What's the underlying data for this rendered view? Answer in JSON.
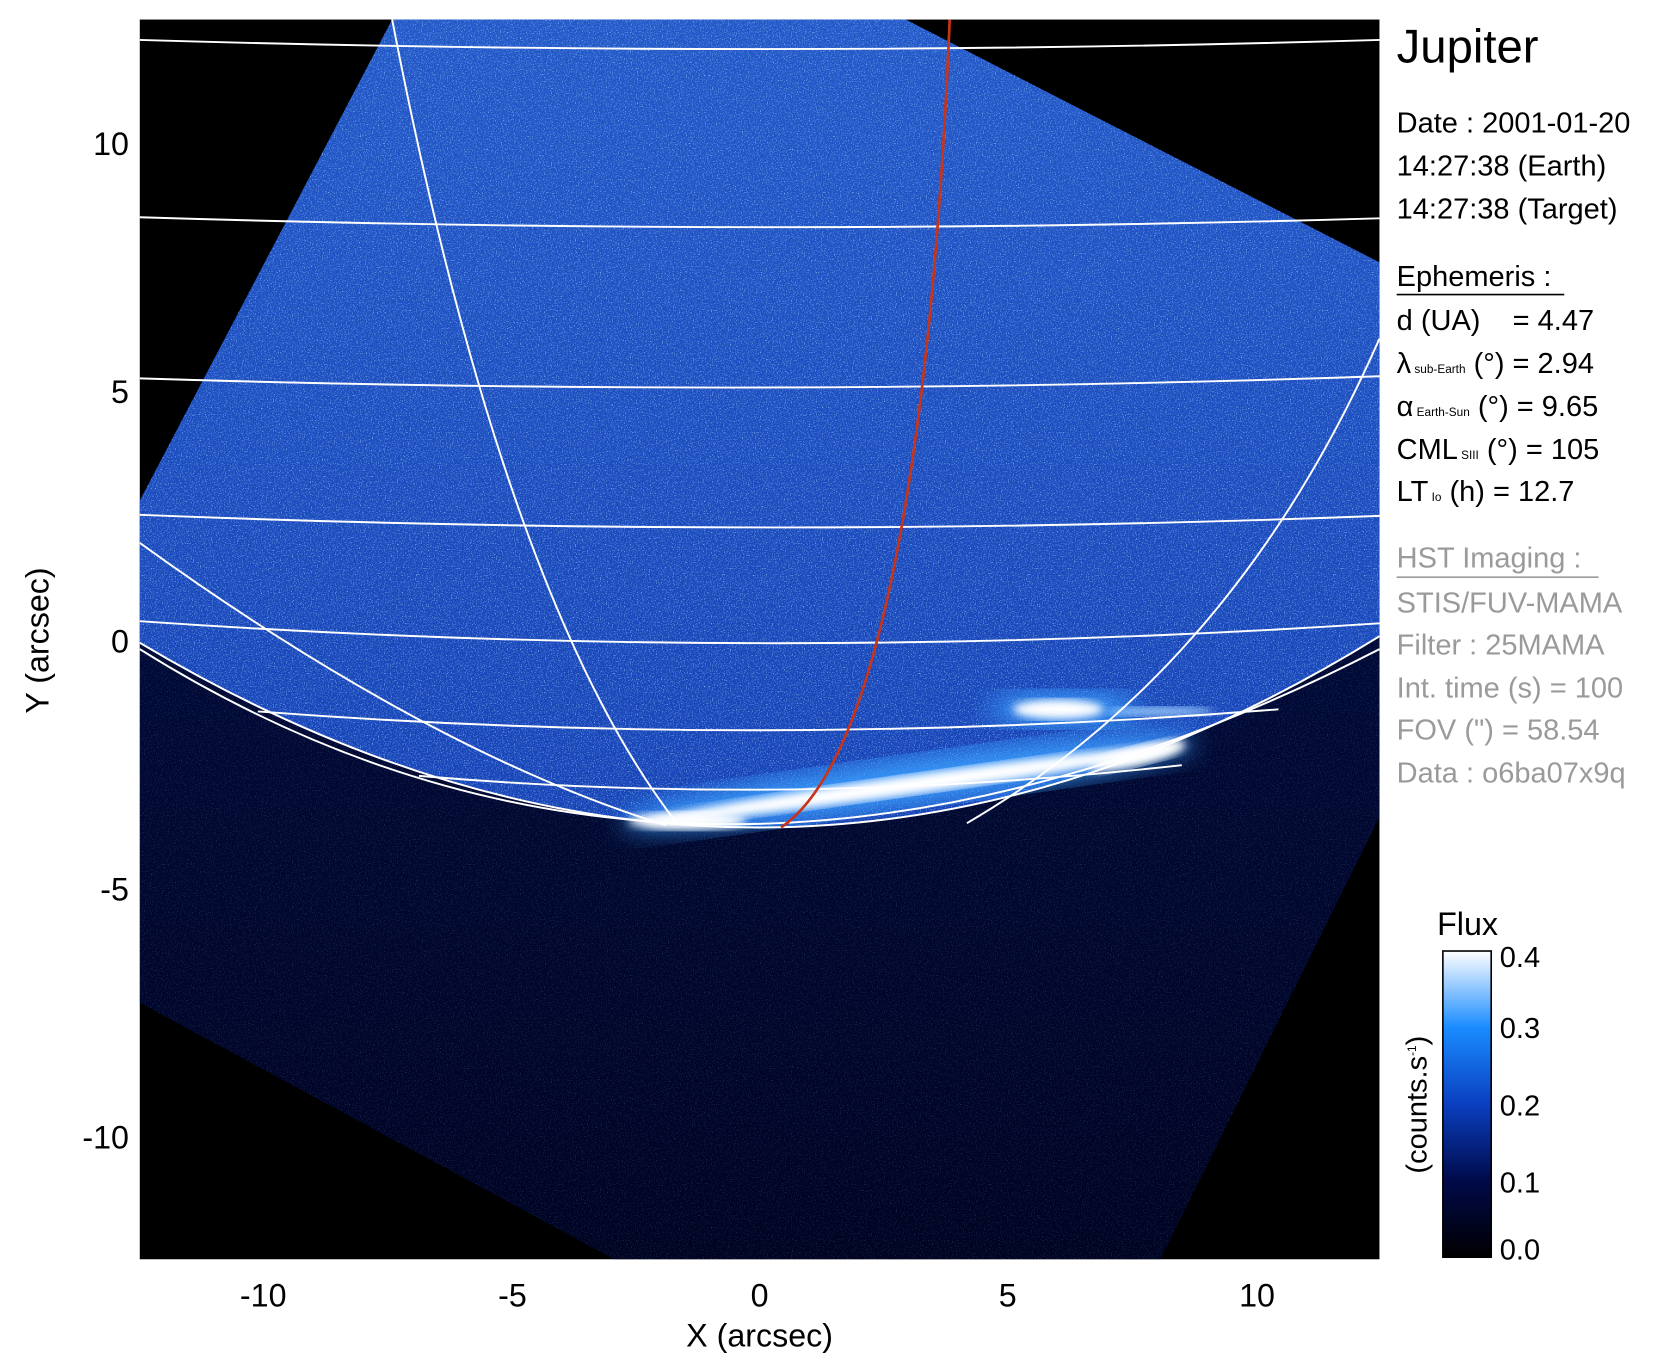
{
  "chart_data": {
    "type": "heatmap",
    "title": "Jupiter",
    "xlabel": "X (arcsec)",
    "ylabel": "Y (arcsec)",
    "xlim": [
      -12.5,
      12.5
    ],
    "ylim": [
      -12.5,
      12.5
    ],
    "xticks": [
      "-10",
      "-5",
      "0",
      "5",
      "10"
    ],
    "yticks": [
      "10",
      "5",
      "0",
      "-5",
      "-10"
    ],
    "colormap": [
      "#000000",
      "#000a4a",
      "#0a3fc0",
      "#1a8cff",
      "#ffffff"
    ],
    "overlay_colors": {
      "grid": "#ffffff",
      "highlight_meridian": "#c8341a"
    },
    "colorbar": {
      "title": "Flux",
      "unit_label": "(counts.s",
      "unit_sup": "-1",
      "unit_close": ")",
      "range": [
        0.0,
        0.4
      ],
      "ticks": [
        "0.4",
        "0.3",
        "0.2",
        "0.1",
        "0.0"
      ]
    }
  },
  "info": {
    "date": "Date : 2001-01-20",
    "time_earth": "14:27:38 (Earth)",
    "time_target": "14:27:38 (Target)",
    "ephemeris_header": "Ephemeris :",
    "d": "d (UA)    = 4.47",
    "lambda": {
      "sym": "λ",
      "sub": "sub-Earth",
      "rest": " (°) = 2.94"
    },
    "alpha": {
      "sym": "α",
      "sub": "Earth-Sun",
      "rest": " (°) = 9.65"
    },
    "cml": {
      "sym": "CML",
      "sub": "SIII",
      "rest": " (°) = 105"
    },
    "lt": {
      "sym": "LT",
      "sub": "Io",
      "rest": " (h) = 12.7"
    },
    "hst_header": "HST Imaging :",
    "instrument": "STIS/FUV-MAMA",
    "filter": "Filter : 25MAMA",
    "int_time": "Int. time (s) = 100",
    "fov": "FOV (\") = 58.54",
    "data": "Data : o6ba07x9q"
  }
}
